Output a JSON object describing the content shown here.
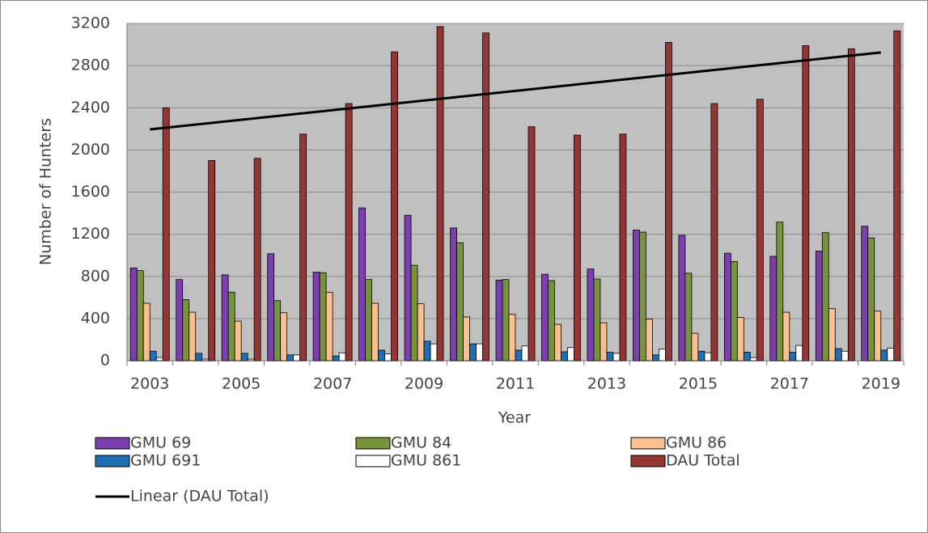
{
  "chart_data": {
    "type": "bar",
    "xlabel": "Year",
    "ylabel": "Number of Hunters",
    "categories": [
      "2003",
      null,
      "2005",
      null,
      "2007",
      null,
      "2009",
      null,
      "2011",
      null,
      "2013",
      null,
      "2015",
      null,
      "2017",
      null,
      "2019"
    ],
    "series": [
      {
        "name": "GMU 69",
        "color": "#7b3fb0",
        "values": [
          880,
          770,
          815,
          1015,
          840,
          1450,
          1380,
          1260,
          765,
          820,
          870,
          1240,
          1190,
          1020,
          990,
          1040,
          1275
        ]
      },
      {
        "name": "GMU 84",
        "color": "#77933c",
        "values": [
          855,
          580,
          650,
          570,
          835,
          770,
          905,
          1120,
          770,
          760,
          775,
          1220,
          830,
          940,
          1315,
          1215,
          1165
        ]
      },
      {
        "name": "GMU 86",
        "color": "#fac090",
        "values": [
          545,
          460,
          375,
          455,
          650,
          545,
          540,
          415,
          440,
          345,
          360,
          395,
          260,
          410,
          460,
          495,
          470
        ]
      },
      {
        "name": "GMU 691",
        "color": "#1f6fb5",
        "values": [
          90,
          70,
          70,
          55,
          45,
          100,
          185,
          160,
          100,
          85,
          80,
          55,
          90,
          80,
          80,
          115,
          100
        ]
      },
      {
        "name": "GMU 861",
        "color": "#ffffff",
        "values": [
          30,
          15,
          15,
          55,
          75,
          65,
          160,
          160,
          140,
          125,
          70,
          110,
          75,
          30,
          145,
          90,
          120
        ]
      },
      {
        "name": "DAU Total",
        "color": "#943634",
        "values": [
          2400,
          1900,
          1920,
          2150,
          2440,
          2930,
          3170,
          3110,
          2220,
          2140,
          2150,
          3020,
          2440,
          2480,
          2990,
          2960,
          3130
        ]
      }
    ],
    "trendline": {
      "name": "Linear (DAU Total)",
      "color": "#000000",
      "values": [
        2195,
        2925
      ]
    },
    "ylim": [
      0,
      3200
    ],
    "yticks": [
      0,
      400,
      800,
      1200,
      1600,
      2000,
      2400,
      2800,
      3200
    ],
    "grid": true
  }
}
